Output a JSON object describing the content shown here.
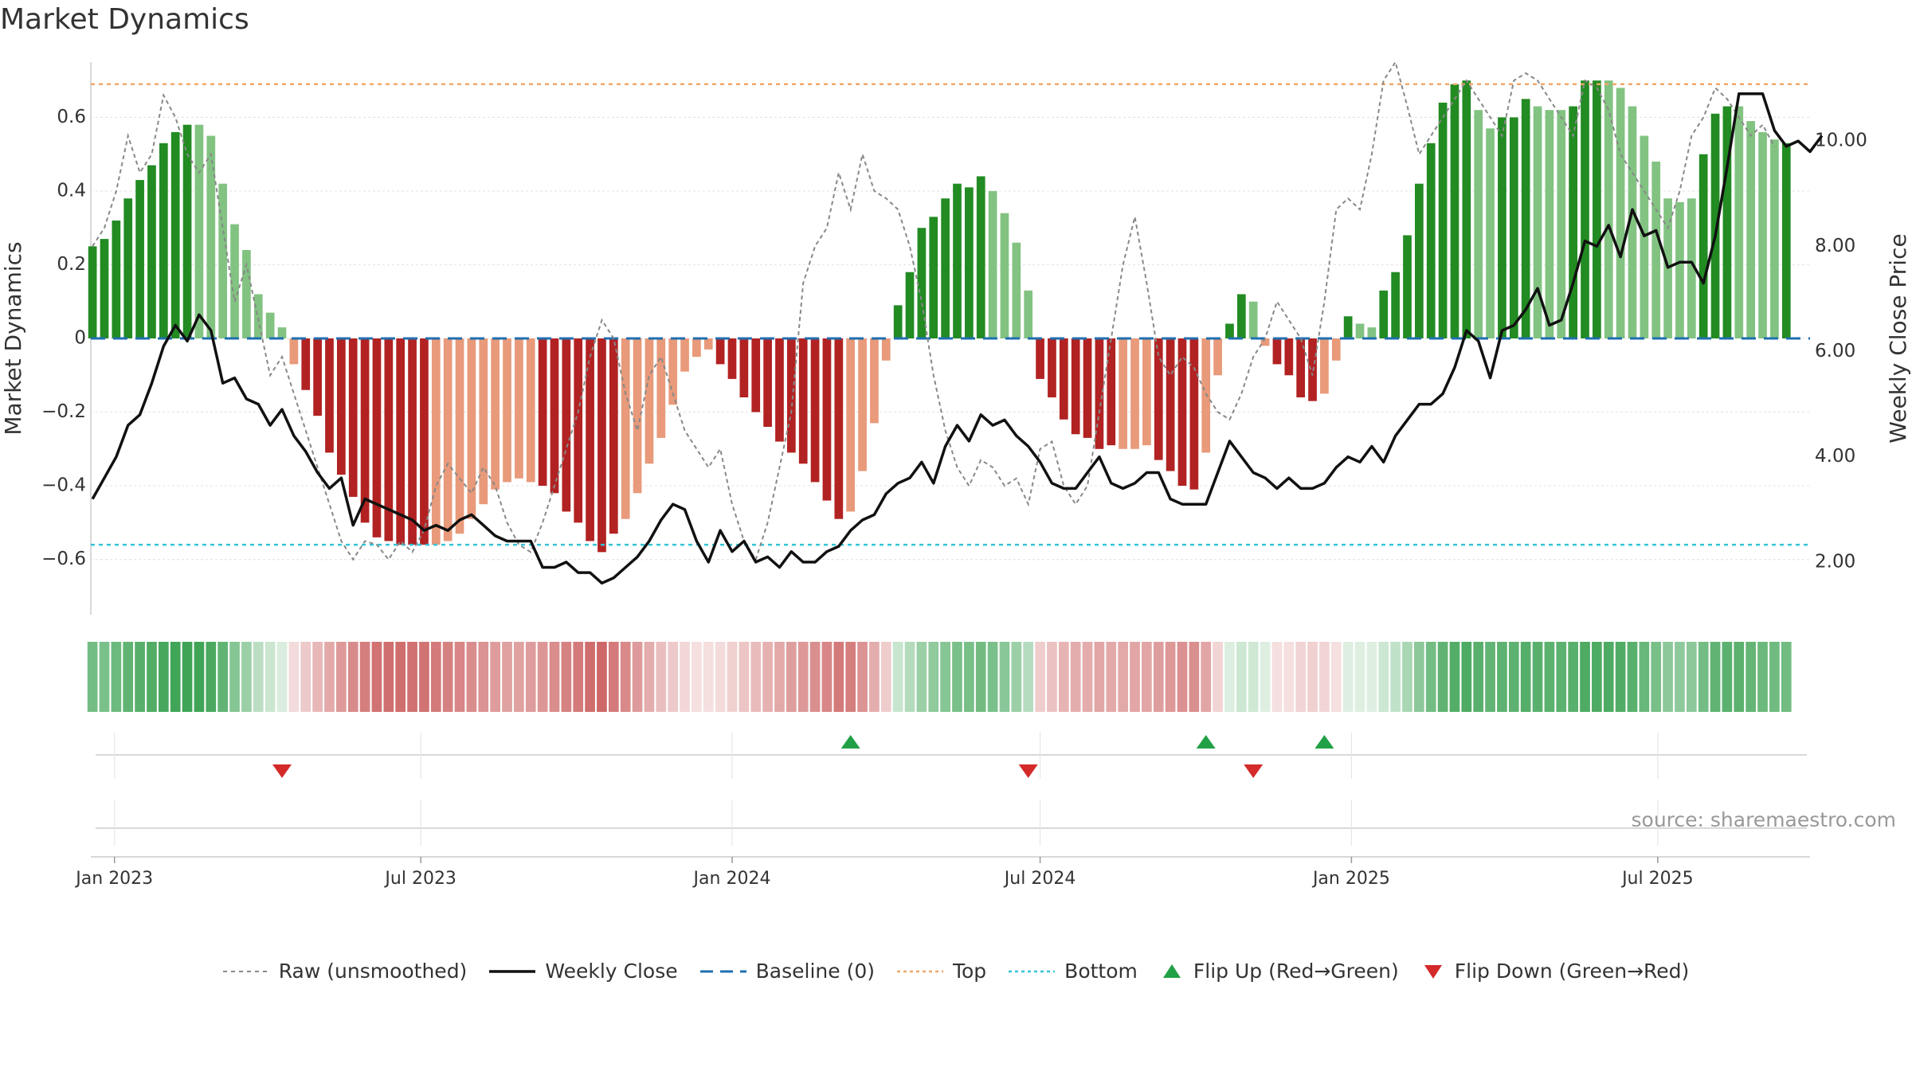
{
  "title": "Market Dynamics",
  "source": "source: sharemaestro.com",
  "colors": {
    "pos_strong": "#228b22",
    "pos_weak": "#82c382",
    "neg_strong": "#b22222",
    "neg_weak": "#e89a7a",
    "top_line": "#f0a868",
    "bottom_line": "#35c3d8",
    "baseline": "#1f6fb0",
    "close_line": "#111111",
    "raw_line": "#888888",
    "flip_up": "#22a045",
    "flip_down": "#d42a2a"
  },
  "legend": {
    "raw": "Raw (unsmoothed)",
    "close": "Weekly Close",
    "baseline": "Baseline (0)",
    "top": "Top",
    "bottom": "Bottom",
    "flip_up": "Flip Up (Red→Green)",
    "flip_down": "Flip Down (Green→Red)"
  },
  "chart_data": {
    "type": "bar",
    "ylabel": "Market Dynamics",
    "y2label": "Weekly Close Price",
    "ylim": [
      -0.75,
      0.75
    ],
    "y2lim": [
      1.0,
      11.5
    ],
    "yticks": [
      0.6,
      0.4,
      0.2,
      0,
      -0.2,
      -0.4,
      -0.6
    ],
    "ytick_labels": [
      "0.6",
      "0.4",
      "0.2",
      "0",
      "−0.2",
      "−0.4",
      "−0.6"
    ],
    "y2ticks": [
      10.0,
      8.0,
      6.0,
      4.0,
      2.0
    ],
    "y2tick_labels": [
      "10.00",
      "8.00",
      "6.00",
      "4.00",
      "2.00"
    ],
    "xlim": [
      "2022-12-18",
      "2025-09-29"
    ],
    "xticks": [
      "2023-01-01",
      "2023-07-01",
      "2024-01-01",
      "2024-07-01",
      "2025-01-01",
      "2025-07-01"
    ],
    "xtick_labels": [
      "Jan 2023",
      "Jul 2023",
      "Jan 2024",
      "Jul 2024",
      "Jan 2025",
      "Jul 2025"
    ],
    "start_date": "2022-12-19",
    "top_threshold": 0.69,
    "bottom_threshold": -0.56,
    "baseline": 0,
    "grid": true,
    "legend_position": "bottom",
    "dynamics": [
      0.25,
      0.27,
      0.32,
      0.38,
      0.43,
      0.47,
      0.53,
      0.56,
      0.58,
      0.58,
      0.55,
      0.42,
      0.31,
      0.24,
      0.12,
      0.07,
      0.03,
      -0.07,
      -0.14,
      -0.21,
      -0.31,
      -0.37,
      -0.43,
      -0.5,
      -0.54,
      -0.55,
      -0.56,
      -0.56,
      -0.56,
      -0.56,
      -0.55,
      -0.53,
      -0.49,
      -0.45,
      -0.41,
      -0.39,
      -0.38,
      -0.39,
      -0.4,
      -0.42,
      -0.47,
      -0.5,
      -0.55,
      -0.58,
      -0.53,
      -0.49,
      -0.42,
      -0.34,
      -0.27,
      -0.18,
      -0.09,
      -0.05,
      -0.03,
      -0.07,
      -0.11,
      -0.16,
      -0.2,
      -0.24,
      -0.28,
      -0.31,
      -0.34,
      -0.39,
      -0.44,
      -0.49,
      -0.47,
      -0.36,
      -0.23,
      -0.06,
      0.09,
      0.18,
      0.3,
      0.33,
      0.38,
      0.42,
      0.41,
      0.44,
      0.4,
      0.34,
      0.26,
      0.13,
      -0.11,
      -0.16,
      -0.22,
      -0.26,
      -0.27,
      -0.3,
      -0.29,
      -0.3,
      -0.3,
      -0.29,
      -0.33,
      -0.36,
      -0.4,
      -0.41,
      -0.31,
      -0.1,
      0.04,
      0.12,
      0.1,
      -0.02,
      -0.07,
      -0.1,
      -0.16,
      -0.17,
      -0.15,
      -0.06,
      0.06,
      0.04,
      0.03,
      0.13,
      0.18,
      0.28,
      0.42,
      0.53,
      0.64,
      0.69,
      0.7,
      0.62,
      0.57,
      0.6,
      0.6,
      0.65,
      0.63,
      0.62,
      0.62,
      0.63,
      0.7,
      0.7,
      0.7,
      0.68,
      0.63,
      0.55,
      0.48,
      0.38,
      0.37,
      0.38,
      0.5,
      0.61,
      0.63,
      0.63,
      0.59,
      0.56,
      0.54,
      0.53
    ],
    "strong": [
      1,
      1,
      1,
      1,
      1,
      1,
      1,
      1,
      1,
      0,
      0,
      0,
      0,
      0,
      0,
      0,
      0,
      0,
      1,
      1,
      1,
      1,
      1,
      1,
      1,
      1,
      1,
      1,
      1,
      0,
      0,
      0,
      0,
      0,
      0,
      0,
      0,
      0,
      1,
      1,
      1,
      1,
      1,
      1,
      1,
      0,
      0,
      0,
      0,
      0,
      0,
      0,
      0,
      1,
      1,
      1,
      1,
      1,
      1,
      1,
      1,
      1,
      1,
      1,
      0,
      0,
      0,
      0,
      1,
      1,
      1,
      1,
      1,
      1,
      1,
      1,
      0,
      0,
      0,
      0,
      1,
      1,
      1,
      1,
      1,
      1,
      1,
      0,
      0,
      0,
      1,
      1,
      1,
      1,
      0,
      0,
      1,
      1,
      0,
      0,
      1,
      1,
      1,
      1,
      0,
      0,
      1,
      0,
      0,
      1,
      1,
      1,
      1,
      1,
      1,
      1,
      1,
      0,
      0,
      1,
      1,
      1,
      0,
      0,
      0,
      1,
      1,
      1,
      0,
      0,
      0,
      0,
      0,
      0,
      0,
      0,
      1,
      1,
      1,
      0,
      0,
      0,
      0,
      1
    ],
    "raw": [
      0.25,
      0.3,
      0.4,
      0.55,
      0.45,
      0.5,
      0.66,
      0.6,
      0.5,
      0.45,
      0.5,
      0.3,
      0.1,
      0.2,
      0.05,
      -0.1,
      -0.05,
      -0.15,
      -0.25,
      -0.35,
      -0.45,
      -0.55,
      -0.6,
      -0.55,
      -0.56,
      -0.6,
      -0.55,
      -0.58,
      -0.52,
      -0.4,
      -0.34,
      -0.38,
      -0.42,
      -0.35,
      -0.4,
      -0.5,
      -0.56,
      -0.58,
      -0.5,
      -0.4,
      -0.3,
      -0.2,
      -0.05,
      0.05,
      0.0,
      -0.15,
      -0.25,
      -0.1,
      -0.05,
      -0.15,
      -0.25,
      -0.3,
      -0.35,
      -0.3,
      -0.45,
      -0.55,
      -0.6,
      -0.5,
      -0.35,
      -0.2,
      0.15,
      0.25,
      0.3,
      0.45,
      0.35,
      0.5,
      0.4,
      0.38,
      0.35,
      0.25,
      0.1,
      -0.1,
      -0.25,
      -0.35,
      -0.4,
      -0.33,
      -0.35,
      -0.4,
      -0.38,
      -0.45,
      -0.3,
      -0.28,
      -0.4,
      -0.45,
      -0.4,
      -0.2,
      0.0,
      0.2,
      0.33,
      0.15,
      -0.05,
      -0.1,
      -0.05,
      -0.08,
      -0.15,
      -0.2,
      -0.22,
      -0.15,
      -0.05,
      0.0,
      0.1,
      0.05,
      0.0,
      -0.1,
      0.1,
      0.35,
      0.38,
      0.35,
      0.5,
      0.7,
      0.75,
      0.63,
      0.5,
      0.55,
      0.6,
      0.65,
      0.7,
      0.65,
      0.6,
      0.55,
      0.7,
      0.72,
      0.7,
      0.65,
      0.6,
      0.55,
      0.7,
      0.68,
      0.62,
      0.5,
      0.45,
      0.4,
      0.35,
      0.3,
      0.4,
      0.55,
      0.6,
      0.68,
      0.65,
      0.6,
      0.55,
      0.58,
      0.52
    ]
  },
  "close": [
    3.2,
    3.6,
    4.0,
    4.6,
    4.8,
    5.4,
    6.1,
    6.5,
    6.2,
    6.7,
    6.4,
    5.4,
    5.5,
    5.1,
    5.0,
    4.6,
    4.9,
    4.4,
    4.1,
    3.7,
    3.4,
    3.6,
    2.7,
    3.2,
    3.1,
    3.0,
    2.9,
    2.8,
    2.6,
    2.7,
    2.6,
    2.8,
    2.9,
    2.7,
    2.5,
    2.4,
    2.4,
    2.4,
    1.9,
    1.9,
    2.0,
    1.8,
    1.8,
    1.6,
    1.7,
    1.9,
    2.1,
    2.4,
    2.8,
    3.1,
    3.0,
    2.4,
    2.0,
    2.6,
    2.2,
    2.4,
    2.0,
    2.1,
    1.9,
    2.2,
    2.0,
    2.0,
    2.2,
    2.3,
    2.6,
    2.8,
    2.9,
    3.3,
    3.5,
    3.6,
    3.9,
    3.5,
    4.2,
    4.6,
    4.3,
    4.8,
    4.6,
    4.7,
    4.4,
    4.2,
    3.9,
    3.5,
    3.4,
    3.4,
    3.7,
    4.0,
    3.5,
    3.4,
    3.5,
    3.7,
    3.7,
    3.2,
    3.1,
    3.1,
    3.1,
    3.7,
    4.3,
    4.0,
    3.7,
    3.6,
    3.4,
    3.6,
    3.4,
    3.4,
    3.5,
    3.8,
    4.0,
    3.9,
    4.2,
    3.9,
    4.4,
    4.7,
    5.0,
    5.0,
    5.2,
    5.7,
    6.4,
    6.2,
    5.5,
    6.4,
    6.5,
    6.8,
    7.2,
    6.5,
    6.6,
    7.3,
    8.1,
    8.0,
    8.4,
    7.8,
    8.7,
    8.2,
    8.3,
    7.6,
    7.7,
    7.7,
    7.3,
    8.2,
    9.5,
    10.9,
    10.9,
    10.9,
    10.2,
    9.9,
    10.0,
    9.8,
    10.1
  ],
  "strip": [
    0.63,
    0.6,
    0.66,
    0.72,
    0.76,
    0.79,
    0.83,
    0.86,
    0.87,
    0.87,
    0.82,
    0.71,
    0.55,
    0.45,
    0.31,
    0.24,
    0.17,
    -0.17,
    -0.25,
    -0.33,
    -0.4,
    -0.47,
    -0.54,
    -0.6,
    -0.65,
    -0.67,
    -0.68,
    -0.66,
    -0.65,
    -0.62,
    -0.59,
    -0.56,
    -0.53,
    -0.5,
    -0.46,
    -0.44,
    -0.44,
    -0.46,
    -0.49,
    -0.53,
    -0.58,
    -0.62,
    -0.68,
    -0.7,
    -0.62,
    -0.55,
    -0.47,
    -0.38,
    -0.3,
    -0.25,
    -0.19,
    -0.15,
    -0.13,
    -0.17,
    -0.22,
    -0.27,
    -0.31,
    -0.36,
    -0.4,
    -0.45,
    -0.48,
    -0.52,
    -0.56,
    -0.62,
    -0.6,
    -0.5,
    -0.38,
    -0.23,
    0.25,
    0.34,
    0.45,
    0.5,
    0.55,
    0.6,
    0.61,
    0.64,
    0.6,
    0.53,
    0.45,
    0.33,
    -0.23,
    -0.29,
    -0.35,
    -0.38,
    -0.39,
    -0.41,
    -0.4,
    -0.4,
    -0.41,
    -0.41,
    -0.45,
    -0.48,
    -0.51,
    -0.52,
    -0.42,
    -0.2,
    0.16,
    0.23,
    0.22,
    0.12,
    -0.12,
    -0.15,
    -0.2,
    -0.22,
    -0.2,
    -0.12,
    0.13,
    0.12,
    0.12,
    0.23,
    0.28,
    0.39,
    0.52,
    0.63,
    0.72,
    0.78,
    0.8,
    0.75,
    0.71,
    0.73,
    0.73,
    0.77,
    0.75,
    0.74,
    0.74,
    0.75,
    0.8,
    0.8,
    0.8,
    0.79,
    0.75,
    0.68,
    0.61,
    0.52,
    0.51,
    0.52,
    0.63,
    0.72,
    0.74,
    0.74,
    0.7,
    0.67,
    0.65,
    0.64
  ],
  "flips_up": [
    "2024-03-11",
    "2024-10-07",
    "2024-12-16"
  ],
  "flips_down": [
    "2023-04-10",
    "2024-06-24",
    "2024-11-04"
  ]
}
